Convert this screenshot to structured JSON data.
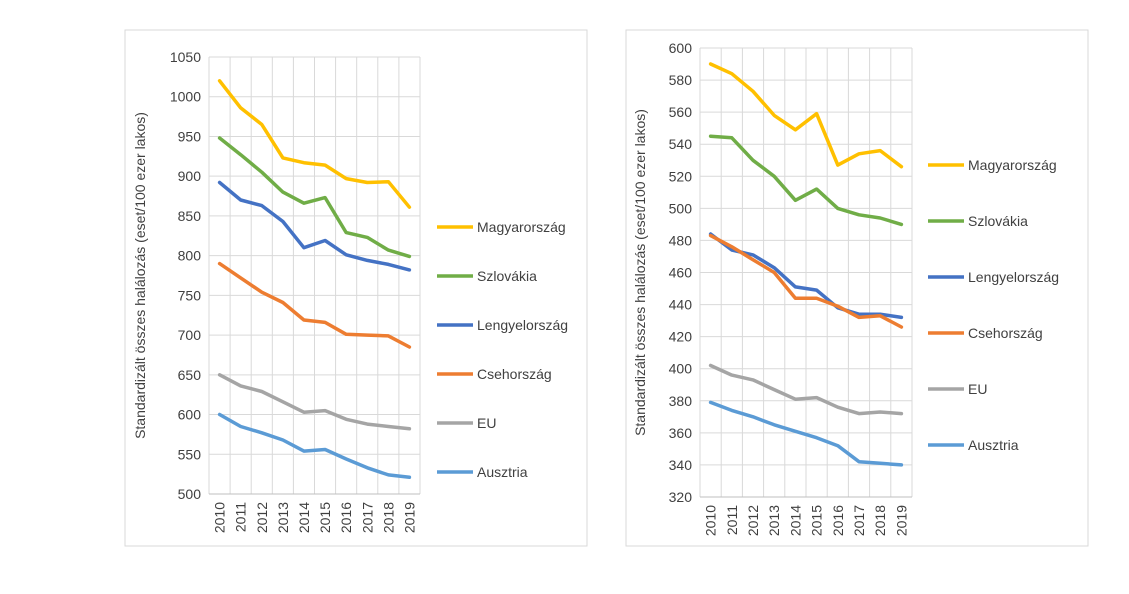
{
  "chart_data": [
    {
      "type": "line",
      "title": "",
      "xlabel": "",
      "ylabel": "Standardizált összes halálozás (eset/100 ezer lakos)",
      "ylim": [
        500,
        1050
      ],
      "ystep": 50,
      "grid": true,
      "legend_position": "right",
      "categories": [
        "2010",
        "2011",
        "2012",
        "2013",
        "2014",
        "2015",
        "2016",
        "2017",
        "2018",
        "2019"
      ],
      "series": [
        {
          "name": "Magyarország",
          "color": "#FFC000",
          "values": [
            1020,
            986,
            965,
            923,
            917,
            914,
            897,
            892,
            893,
            861
          ]
        },
        {
          "name": "Szlovákia",
          "color": "#70AD47",
          "values": [
            948,
            927,
            905,
            880,
            866,
            873,
            829,
            823,
            807,
            799
          ]
        },
        {
          "name": "Lengyelország",
          "color": "#4472C4",
          "values": [
            892,
            870,
            863,
            843,
            810,
            819,
            801,
            794,
            789,
            782
          ]
        },
        {
          "name": "Csehország",
          "color": "#ED7D31",
          "values": [
            790,
            772,
            754,
            741,
            719,
            716,
            701,
            700,
            699,
            685
          ]
        },
        {
          "name": "EU",
          "color": "#A5A5A5",
          "values": [
            650,
            636,
            629,
            616,
            603,
            605,
            594,
            588,
            585,
            582
          ]
        },
        {
          "name": "Ausztria",
          "color": "#5B9BD5",
          "values": [
            600,
            585,
            577,
            568,
            554,
            556,
            544,
            533,
            524,
            521
          ]
        }
      ]
    },
    {
      "type": "line",
      "title": "",
      "xlabel": "",
      "ylabel": "Standardizált összes halálozás (eset/100 ezer lakos)",
      "ylim": [
        320,
        600
      ],
      "ystep": 20,
      "grid": true,
      "legend_position": "right",
      "categories": [
        "2010",
        "2011",
        "2012",
        "2013",
        "2014",
        "2015",
        "2016",
        "2017",
        "2018",
        "2019"
      ],
      "series": [
        {
          "name": "Magyarország",
          "color": "#FFC000",
          "values": [
            590,
            584,
            573,
            558,
            549,
            559,
            527,
            534,
            536,
            526
          ]
        },
        {
          "name": "Szlovákia",
          "color": "#70AD47",
          "values": [
            545,
            544,
            530,
            520,
            505,
            512,
            500,
            496,
            494,
            490
          ]
        },
        {
          "name": "Lengyelország",
          "color": "#4472C4",
          "values": [
            484,
            474,
            471,
            463,
            451,
            449,
            438,
            434,
            434,
            432
          ]
        },
        {
          "name": "Csehország",
          "color": "#ED7D31",
          "values": [
            483,
            476,
            468,
            460,
            444,
            444,
            439,
            432,
            433,
            426
          ]
        },
        {
          "name": "EU",
          "color": "#A5A5A5",
          "values": [
            402,
            396,
            393,
            387,
            381,
            382,
            376,
            372,
            373,
            372
          ]
        },
        {
          "name": "Ausztria",
          "color": "#5B9BD5",
          "values": [
            379,
            374,
            370,
            365,
            361,
            357,
            352,
            342,
            341,
            340
          ]
        }
      ]
    }
  ]
}
